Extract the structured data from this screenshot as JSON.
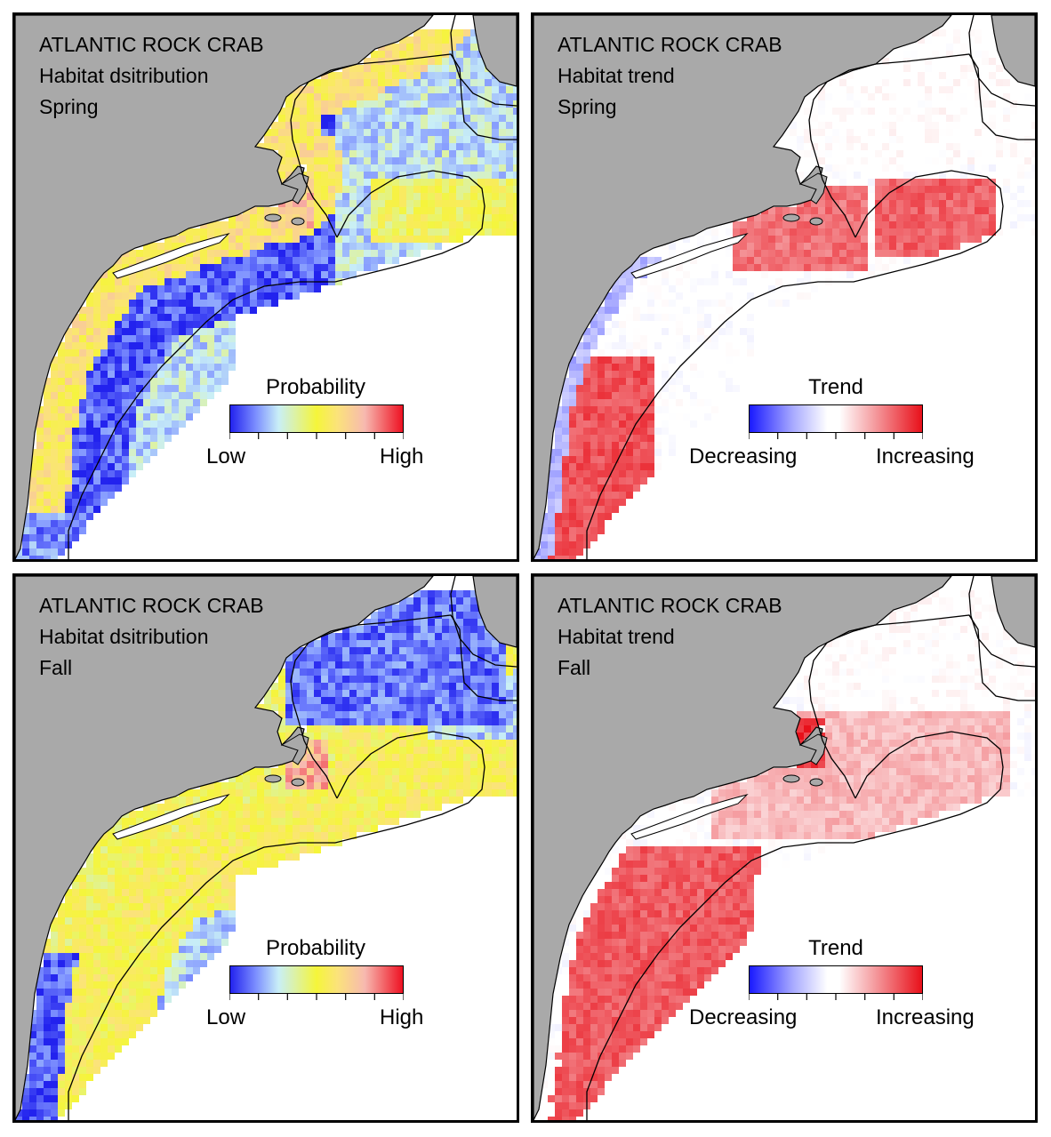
{
  "colors": {
    "land": "#a9a9a9",
    "water": "#ffffff",
    "prob_low": "#2222ee",
    "prob_mid": "#f5f53a",
    "prob_high": "#ee1122",
    "trend_dec": "#1a1aff",
    "trend_inc": "#e8101a"
  },
  "panels": [
    {
      "title": "ATLANTIC ROCK CRAB",
      "subtitle": "Habitat dsitribution",
      "season": "Spring",
      "kind": "probability",
      "legend": {
        "title": "Probability",
        "low": "Low",
        "high": "High"
      }
    },
    {
      "title": "ATLANTIC ROCK CRAB",
      "subtitle": "Habitat trend",
      "season": "Spring",
      "kind": "trend",
      "legend": {
        "title": "Trend",
        "low": "Decreasing",
        "high": "Increasing"
      }
    },
    {
      "title": "ATLANTIC ROCK CRAB",
      "subtitle": "Habitat dsitribution",
      "season": "Fall",
      "kind": "probability",
      "legend": {
        "title": "Probability",
        "low": "Low",
        "high": "High"
      }
    },
    {
      "title": "ATLANTIC ROCK CRAB",
      "subtitle": "Habitat trend",
      "season": "Fall",
      "kind": "trend",
      "legend": {
        "title": "Trend",
        "low": "Decreasing",
        "high": "Increasing"
      }
    }
  ]
}
